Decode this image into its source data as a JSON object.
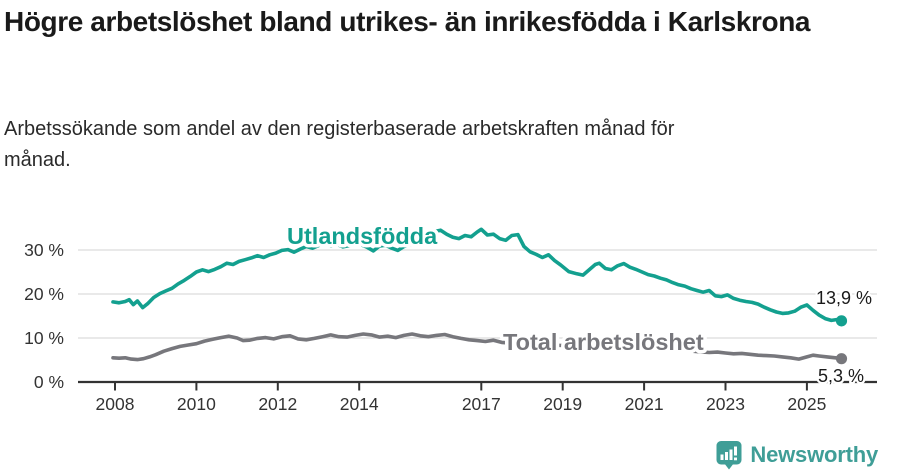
{
  "title": "Högre arbetslöshet bland utrikes- än inrikesfödda i Karlskrona",
  "subtitle": "Arbetssökande som andel av den registerbaserade arbetskraften månad för månad.",
  "branding": {
    "name": "Newsworthy",
    "color": "#3f9e97"
  },
  "colors": {
    "accent_teal": "#13a08f",
    "neutral_gray": "#77777c",
    "axis": "#333333",
    "grid": "#dcdcdc",
    "end_label_text": "#1a1a1a"
  },
  "chart_data": {
    "type": "line",
    "title": "Högre arbetslöshet bland utrikes- än inrikesfödda i Karlskrona",
    "subtitle": "Arbetssökande som andel av den registerbaserade arbetskraften månad för månad.",
    "unit": "%",
    "grid": true,
    "legend_position": "inline-labels",
    "x_axis": {
      "tick_labels": [
        "2008",
        "2010",
        "2012",
        "2014",
        "2017",
        "2019",
        "2021",
        "2023",
        "2025"
      ],
      "tick_values": [
        2008,
        2010,
        2012,
        2014,
        2017,
        2019,
        2021,
        2023,
        2025
      ],
      "range": [
        2007.9,
        2026.2
      ]
    },
    "y_axis": {
      "tick_labels": [
        "0 %",
        "10 %",
        "20 %",
        "30 %"
      ],
      "tick_values": [
        0,
        10,
        20,
        30
      ],
      "range": [
        0,
        36
      ]
    },
    "series": [
      {
        "name": "Utlandsfödda",
        "color": "#13a08f",
        "end_value": 13.9,
        "end_value_label": "13,9 %",
        "points": [
          [
            2007.95,
            18.2
          ],
          [
            2008.1,
            18.0
          ],
          [
            2008.25,
            18.3
          ],
          [
            2008.35,
            18.7
          ],
          [
            2008.45,
            17.6
          ],
          [
            2008.55,
            18.4
          ],
          [
            2008.68,
            16.9
          ],
          [
            2008.8,
            17.8
          ],
          [
            2008.95,
            19.2
          ],
          [
            2009.1,
            20.1
          ],
          [
            2009.25,
            20.7
          ],
          [
            2009.4,
            21.3
          ],
          [
            2009.55,
            22.3
          ],
          [
            2009.7,
            23.1
          ],
          [
            2009.85,
            24.0
          ],
          [
            2010.0,
            25.0
          ],
          [
            2010.15,
            25.5
          ],
          [
            2010.3,
            25.1
          ],
          [
            2010.45,
            25.6
          ],
          [
            2010.6,
            26.2
          ],
          [
            2010.75,
            27.0
          ],
          [
            2010.9,
            26.7
          ],
          [
            2011.05,
            27.4
          ],
          [
            2011.2,
            27.8
          ],
          [
            2011.35,
            28.2
          ],
          [
            2011.5,
            28.7
          ],
          [
            2011.65,
            28.3
          ],
          [
            2011.8,
            28.9
          ],
          [
            2011.95,
            29.3
          ],
          [
            2012.1,
            29.9
          ],
          [
            2012.25,
            30.1
          ],
          [
            2012.4,
            29.5
          ],
          [
            2012.55,
            30.2
          ],
          [
            2012.7,
            30.8
          ],
          [
            2012.85,
            30.4
          ],
          [
            2013.0,
            31.0
          ],
          [
            2013.15,
            31.5
          ],
          [
            2013.3,
            30.9
          ],
          [
            2013.45,
            31.3
          ],
          [
            2013.6,
            30.7
          ],
          [
            2013.75,
            31.0
          ],
          [
            2013.9,
            31.4
          ],
          [
            2014.05,
            31.2
          ],
          [
            2014.2,
            30.6
          ],
          [
            2014.35,
            29.8
          ],
          [
            2014.5,
            30.9
          ],
          [
            2014.65,
            31.1
          ],
          [
            2014.8,
            30.4
          ],
          [
            2014.95,
            29.9
          ],
          [
            2015.1,
            30.8
          ],
          [
            2015.25,
            31.2
          ],
          [
            2015.4,
            31.6
          ],
          [
            2015.55,
            32.3
          ],
          [
            2015.7,
            33.5
          ],
          [
            2015.85,
            34.2
          ],
          [
            2016.0,
            34.5
          ],
          [
            2016.15,
            33.6
          ],
          [
            2016.3,
            32.9
          ],
          [
            2016.45,
            32.6
          ],
          [
            2016.6,
            33.3
          ],
          [
            2016.75,
            33.0
          ],
          [
            2016.9,
            34.1
          ],
          [
            2017.0,
            34.7
          ],
          [
            2017.15,
            33.4
          ],
          [
            2017.3,
            33.6
          ],
          [
            2017.45,
            32.6
          ],
          [
            2017.6,
            32.2
          ],
          [
            2017.75,
            33.3
          ],
          [
            2017.9,
            33.5
          ],
          [
            2018.05,
            30.8
          ],
          [
            2018.2,
            29.6
          ],
          [
            2018.35,
            29.0
          ],
          [
            2018.5,
            28.3
          ],
          [
            2018.65,
            28.9
          ],
          [
            2018.8,
            27.6
          ],
          [
            2018.95,
            26.6
          ],
          [
            2019.15,
            25.1
          ],
          [
            2019.35,
            24.6
          ],
          [
            2019.5,
            24.3
          ],
          [
            2019.65,
            25.5
          ],
          [
            2019.8,
            26.7
          ],
          [
            2019.9,
            27.0
          ],
          [
            2020.05,
            25.8
          ],
          [
            2020.2,
            25.5
          ],
          [
            2020.35,
            26.4
          ],
          [
            2020.5,
            26.9
          ],
          [
            2020.65,
            26.1
          ],
          [
            2020.8,
            25.6
          ],
          [
            2020.95,
            25.0
          ],
          [
            2021.1,
            24.4
          ],
          [
            2021.25,
            24.1
          ],
          [
            2021.4,
            23.6
          ],
          [
            2021.55,
            23.2
          ],
          [
            2021.7,
            22.6
          ],
          [
            2021.85,
            22.1
          ],
          [
            2022.0,
            21.8
          ],
          [
            2022.15,
            21.2
          ],
          [
            2022.3,
            20.8
          ],
          [
            2022.45,
            20.4
          ],
          [
            2022.6,
            20.8
          ],
          [
            2022.75,
            19.6
          ],
          [
            2022.9,
            19.4
          ],
          [
            2023.05,
            19.8
          ],
          [
            2023.2,
            19.0
          ],
          [
            2023.35,
            18.6
          ],
          [
            2023.5,
            18.3
          ],
          [
            2023.65,
            18.1
          ],
          [
            2023.8,
            17.7
          ],
          [
            2023.95,
            17.0
          ],
          [
            2024.1,
            16.4
          ],
          [
            2024.25,
            15.9
          ],
          [
            2024.4,
            15.6
          ],
          [
            2024.55,
            15.7
          ],
          [
            2024.7,
            16.1
          ],
          [
            2024.85,
            17.0
          ],
          [
            2025.0,
            17.5
          ],
          [
            2025.15,
            16.3
          ],
          [
            2025.3,
            15.2
          ],
          [
            2025.45,
            14.4
          ],
          [
            2025.6,
            14.0
          ],
          [
            2025.75,
            14.2
          ],
          [
            2025.85,
            13.9
          ]
        ]
      },
      {
        "name": "Total arbetslöshet",
        "color": "#77777c",
        "end_value": 5.3,
        "end_value_label": "5,3 %",
        "points": [
          [
            2007.95,
            5.5
          ],
          [
            2008.1,
            5.4
          ],
          [
            2008.25,
            5.5
          ],
          [
            2008.4,
            5.2
          ],
          [
            2008.55,
            5.1
          ],
          [
            2008.7,
            5.3
          ],
          [
            2008.85,
            5.7
          ],
          [
            2009.0,
            6.2
          ],
          [
            2009.2,
            7.0
          ],
          [
            2009.4,
            7.6
          ],
          [
            2009.6,
            8.1
          ],
          [
            2009.8,
            8.4
          ],
          [
            2010.0,
            8.7
          ],
          [
            2010.2,
            9.3
          ],
          [
            2010.4,
            9.7
          ],
          [
            2010.6,
            10.1
          ],
          [
            2010.8,
            10.4
          ],
          [
            2011.0,
            10.0
          ],
          [
            2011.15,
            9.4
          ],
          [
            2011.3,
            9.5
          ],
          [
            2011.5,
            9.9
          ],
          [
            2011.7,
            10.1
          ],
          [
            2011.9,
            9.8
          ],
          [
            2012.1,
            10.3
          ],
          [
            2012.3,
            10.5
          ],
          [
            2012.5,
            9.8
          ],
          [
            2012.7,
            9.6
          ],
          [
            2012.9,
            9.9
          ],
          [
            2013.1,
            10.3
          ],
          [
            2013.3,
            10.7
          ],
          [
            2013.5,
            10.3
          ],
          [
            2013.7,
            10.2
          ],
          [
            2013.9,
            10.6
          ],
          [
            2014.1,
            10.9
          ],
          [
            2014.3,
            10.7
          ],
          [
            2014.5,
            10.2
          ],
          [
            2014.7,
            10.4
          ],
          [
            2014.9,
            10.1
          ],
          [
            2015.1,
            10.6
          ],
          [
            2015.3,
            10.9
          ],
          [
            2015.5,
            10.5
          ],
          [
            2015.7,
            10.3
          ],
          [
            2015.9,
            10.6
          ],
          [
            2016.1,
            10.8
          ],
          [
            2016.3,
            10.3
          ],
          [
            2016.5,
            9.9
          ],
          [
            2016.7,
            9.6
          ],
          [
            2016.9,
            9.4
          ],
          [
            2017.1,
            9.2
          ],
          [
            2017.3,
            9.5
          ],
          [
            2017.5,
            9.0
          ],
          [
            2017.8,
            8.8
          ],
          [
            2018.1,
            8.6
          ],
          [
            2018.4,
            8.5
          ],
          [
            2018.7,
            8.4
          ],
          [
            2019.0,
            8.3
          ],
          [
            2019.3,
            8.1
          ],
          [
            2019.6,
            8.2
          ],
          [
            2019.9,
            8.9
          ],
          [
            2020.2,
            9.3
          ],
          [
            2020.5,
            9.5
          ],
          [
            2020.8,
            9.2
          ],
          [
            2021.1,
            8.8
          ],
          [
            2021.4,
            8.3
          ],
          [
            2021.7,
            7.8
          ],
          [
            2022.0,
            7.4
          ],
          [
            2022.2,
            7.0
          ],
          [
            2022.45,
            6.8
          ],
          [
            2022.6,
            6.7
          ],
          [
            2022.8,
            6.8
          ],
          [
            2023.0,
            6.6
          ],
          [
            2023.2,
            6.4
          ],
          [
            2023.4,
            6.5
          ],
          [
            2023.6,
            6.3
          ],
          [
            2023.8,
            6.1
          ],
          [
            2024.0,
            6.0
          ],
          [
            2024.2,
            5.9
          ],
          [
            2024.4,
            5.7
          ],
          [
            2024.6,
            5.5
          ],
          [
            2024.8,
            5.2
          ],
          [
            2025.0,
            5.7
          ],
          [
            2025.15,
            6.1
          ],
          [
            2025.3,
            5.9
          ],
          [
            2025.5,
            5.7
          ],
          [
            2025.7,
            5.5
          ],
          [
            2025.85,
            5.3
          ]
        ]
      }
    ]
  }
}
